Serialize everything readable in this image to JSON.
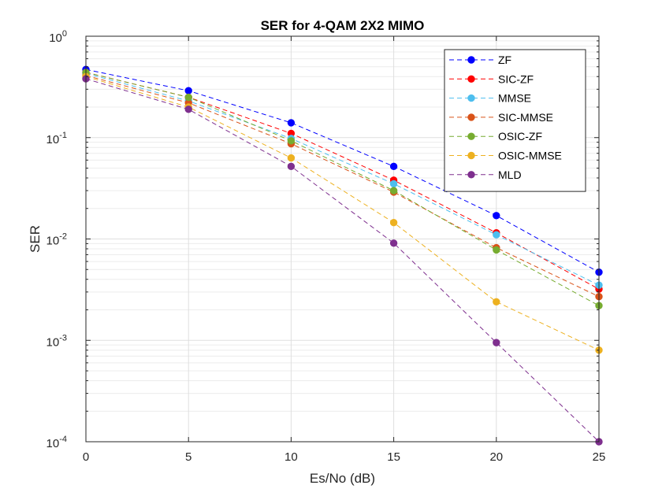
{
  "chart_data": {
    "type": "line",
    "title": "SER for 4-QAM 2X2 MIMO",
    "xlabel": "Es/No (dB)",
    "ylabel": "SER",
    "x": [
      0,
      5,
      10,
      15,
      20,
      25
    ],
    "xlim": [
      0,
      25
    ],
    "ylim": [
      0.0001,
      1
    ],
    "yscale": "log",
    "grid": true,
    "legend_position": "top-right",
    "x_tick_labels": [
      "0",
      "5",
      "10",
      "15",
      "20",
      "25"
    ],
    "y_tick_labels": [
      {
        "base": "10",
        "exp": "-4"
      },
      {
        "base": "10",
        "exp": "-3"
      },
      {
        "base": "10",
        "exp": "-2"
      },
      {
        "base": "10",
        "exp": "-1"
      },
      {
        "base": "10",
        "exp": "0"
      }
    ],
    "series": [
      {
        "name": "ZF",
        "color": "#0000ff",
        "values": [
          0.47,
          0.29,
          0.14,
          0.052,
          0.017,
          0.0047
        ]
      },
      {
        "name": "SIC-ZF",
        "color": "#ff0000",
        "values": [
          0.44,
          0.25,
          0.11,
          0.038,
          0.0115,
          0.0032
        ]
      },
      {
        "name": "MMSE",
        "color": "#4dbeee",
        "values": [
          0.43,
          0.23,
          0.098,
          0.035,
          0.011,
          0.0035
        ]
      },
      {
        "name": "SIC-MMSE",
        "color": "#d95319",
        "values": [
          0.41,
          0.22,
          0.087,
          0.029,
          0.0082,
          0.0027
        ]
      },
      {
        "name": "OSIC-ZF",
        "color": "#77ac30",
        "values": [
          0.44,
          0.25,
          0.093,
          0.03,
          0.0078,
          0.0022
        ]
      },
      {
        "name": "OSIC-MMSE",
        "color": "#edb120",
        "values": [
          0.4,
          0.2,
          0.063,
          0.0145,
          0.0024,
          0.0008
        ]
      },
      {
        "name": "MLD",
        "color": "#7e2f8e",
        "values": [
          0.38,
          0.19,
          0.052,
          0.0091,
          0.00095,
          0.0001
        ]
      }
    ]
  }
}
